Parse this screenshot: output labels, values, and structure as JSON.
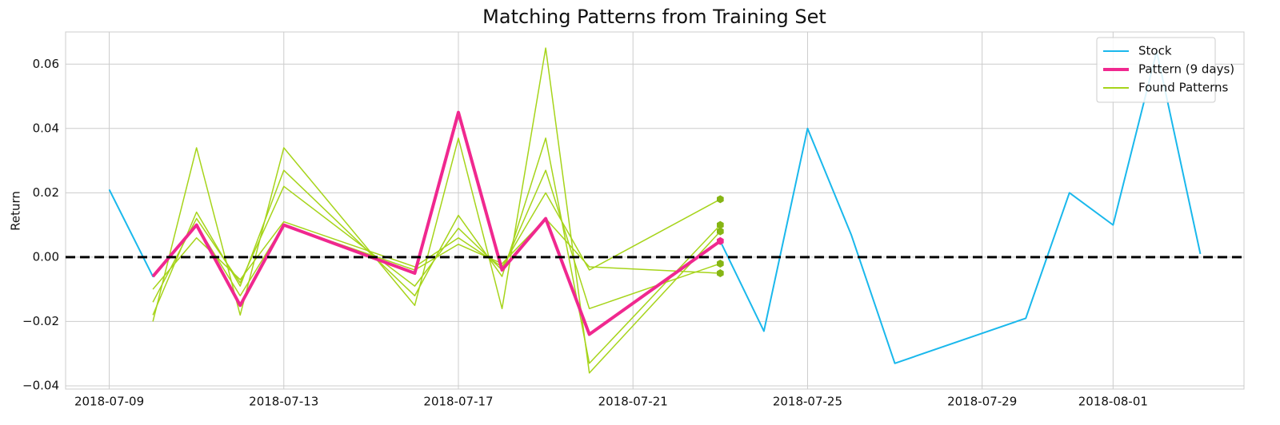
{
  "chart_data": {
    "type": "line",
    "title": "Matching Patterns from Training Set",
    "y_label": "Return",
    "xlim": [
      "2018-07-08",
      "2018-08-04"
    ],
    "xticks": [
      "2018-07-09",
      "2018-07-13",
      "2018-07-17",
      "2018-07-21",
      "2018-07-25",
      "2018-07-29",
      "2018-08-01"
    ],
    "ylim": [
      -0.041,
      0.07
    ],
    "yticks": [
      {
        "value": -0.04,
        "label": "−0.04"
      },
      {
        "value": -0.02,
        "label": "−0.02"
      },
      {
        "value": 0,
        "label": "0.00"
      },
      0.02,
      0.04,
      0.06
    ],
    "grid": true,
    "hline": 0,
    "legend": "upper right",
    "series": [
      {
        "name": "Stock",
        "color": "#1ab8ec",
        "width": 2,
        "x": [
          "2018-07-09",
          "2018-07-10",
          "2018-07-11",
          "2018-07-12",
          "2018-07-13",
          "2018-07-16",
          "2018-07-17",
          "2018-07-18",
          "2018-07-19",
          "2018-07-20",
          "2018-07-23",
          "2018-07-24",
          "2018-07-25",
          "2018-07-26",
          "2018-07-27",
          "2018-07-30",
          "2018-07-31",
          "2018-08-01",
          "2018-08-02",
          "2018-08-03"
        ],
        "values": [
          0.021,
          -0.006,
          0.01,
          -0.015,
          0.01,
          -0.005,
          0.045,
          -0.004,
          0.012,
          -0.024,
          0.005,
          -0.023,
          0.04,
          0.007,
          -0.033,
          -0.019,
          0.02,
          0.01,
          0.064,
          0.001
        ]
      },
      {
        "name": "Pattern (9 days)",
        "color": "#f0288f",
        "width": 4,
        "end_marker": true,
        "x": [
          "2018-07-10",
          "2018-07-11",
          "2018-07-12",
          "2018-07-13",
          "2018-07-16",
          "2018-07-17",
          "2018-07-18",
          "2018-07-19",
          "2018-07-20",
          "2018-07-23"
        ],
        "values": [
          -0.006,
          0.01,
          -0.015,
          0.01,
          -0.005,
          0.045,
          -0.004,
          0.012,
          -0.024,
          0.005
        ]
      }
    ],
    "found_patterns": {
      "name": "Found Patterns",
      "color": "#a6d41a",
      "marker_color": "#86b514",
      "x": [
        "2018-07-10",
        "2018-07-11",
        "2018-07-12",
        "2018-07-13",
        "2018-07-16",
        "2018-07-17",
        "2018-07-18",
        "2018-07-19",
        "2018-07-20",
        "2018-07-23"
      ],
      "lines": [
        [
          -0.02,
          0.034,
          -0.018,
          0.034,
          -0.015,
          0.037,
          -0.016,
          0.065,
          -0.036,
          0.008
        ],
        [
          -0.018,
          0.014,
          -0.009,
          0.027,
          -0.012,
          0.013,
          -0.006,
          0.037,
          -0.033,
          0.01
        ],
        [
          -0.014,
          0.012,
          -0.008,
          0.022,
          -0.009,
          0.009,
          -0.004,
          0.027,
          -0.016,
          -0.002
        ],
        [
          -0.01,
          0.006,
          -0.007,
          0.011,
          -0.003,
          0.006,
          -0.003,
          0.02,
          -0.004,
          0.018
        ],
        [
          -0.006,
          0.01,
          -0.012,
          0.01,
          -0.004,
          0.004,
          -0.002,
          0.012,
          -0.003,
          -0.005
        ]
      ]
    }
  }
}
